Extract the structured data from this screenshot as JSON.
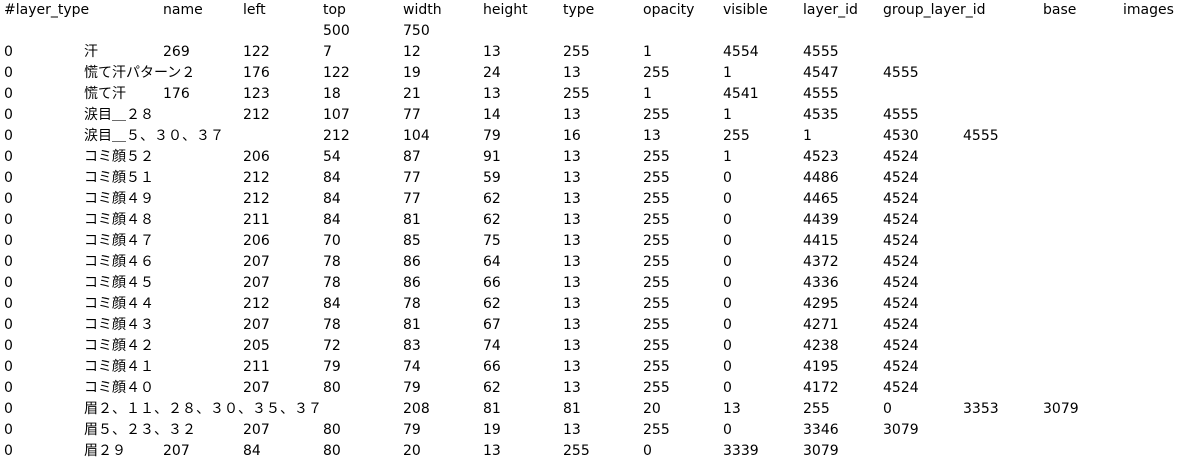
{
  "header": [
    [
      "#layer_type",
      "name",
      "left",
      "top",
      "width",
      "height",
      "type",
      "opacity",
      "visible",
      "layer_id",
      "group_layer_id",
      "base",
      "images"
    ],
    [
      "",
      "",
      "",
      "500",
      "750"
    ]
  ],
  "rows": [
    [
      "0",
      "汗",
      "269",
      "122",
      "7",
      "12",
      "13",
      "255",
      "1",
      "4554",
      "4555"
    ],
    [
      "0",
      "慌て汗パターン２",
      "176",
      "122",
      "19",
      "24",
      "13",
      "255",
      "1",
      "4547",
      "4555"
    ],
    [
      "0",
      "慌て汗",
      "176",
      "123",
      "18",
      "21",
      "13",
      "255",
      "1",
      "4541",
      "4555"
    ],
    [
      "0",
      "涙目＿２８",
      "212",
      "107",
      "77",
      "14",
      "13",
      "255",
      "1",
      "4535",
      "4555"
    ],
    [
      "0",
      "涙目＿５、３０、３７",
      "212",
      "104",
      "79",
      "16",
      "13",
      "255",
      "1",
      "4530",
      "4555"
    ],
    [
      "0",
      "コミ顔５２",
      "206",
      "54",
      "87",
      "91",
      "13",
      "255",
      "1",
      "4523",
      "4524"
    ],
    [
      "0",
      "コミ顔５１",
      "212",
      "84",
      "77",
      "59",
      "13",
      "255",
      "0",
      "4486",
      "4524"
    ],
    [
      "0",
      "コミ顔４９",
      "212",
      "84",
      "77",
      "62",
      "13",
      "255",
      "0",
      "4465",
      "4524"
    ],
    [
      "0",
      "コミ顔４８",
      "211",
      "84",
      "81",
      "62",
      "13",
      "255",
      "0",
      "4439",
      "4524"
    ],
    [
      "0",
      "コミ顔４７",
      "206",
      "70",
      "85",
      "75",
      "13",
      "255",
      "0",
      "4415",
      "4524"
    ],
    [
      "0",
      "コミ顔４６",
      "207",
      "78",
      "86",
      "64",
      "13",
      "255",
      "0",
      "4372",
      "4524"
    ],
    [
      "0",
      "コミ顔４５",
      "207",
      "78",
      "86",
      "66",
      "13",
      "255",
      "0",
      "4336",
      "4524"
    ],
    [
      "0",
      "コミ顔４４",
      "212",
      "84",
      "78",
      "62",
      "13",
      "255",
      "0",
      "4295",
      "4524"
    ],
    [
      "0",
      "コミ顔４３",
      "207",
      "78",
      "81",
      "67",
      "13",
      "255",
      "0",
      "4271",
      "4524"
    ],
    [
      "0",
      "コミ顔４２",
      "205",
      "72",
      "83",
      "74",
      "13",
      "255",
      "0",
      "4238",
      "4524"
    ],
    [
      "0",
      "コミ顔４１",
      "211",
      "79",
      "74",
      "66",
      "13",
      "255",
      "0",
      "4195",
      "4524"
    ],
    [
      "0",
      "コミ顔４０",
      "207",
      "80",
      "79",
      "62",
      "13",
      "255",
      "0",
      "4172",
      "4524"
    ],
    [
      "0",
      "眉２、１１、２８、３０、３５、３７",
      "208",
      "81",
      "81",
      "20",
      "13",
      "255",
      "0",
      "3353",
      "3079"
    ],
    [
      "0",
      "眉５、２３、３２",
      "207",
      "80",
      "79",
      "19",
      "13",
      "255",
      "0",
      "3346",
      "3079"
    ],
    [
      "0",
      "眉２９",
      "207",
      "84",
      "80",
      "20",
      "13",
      "255",
      "0",
      "3339",
      "3079"
    ]
  ]
}
